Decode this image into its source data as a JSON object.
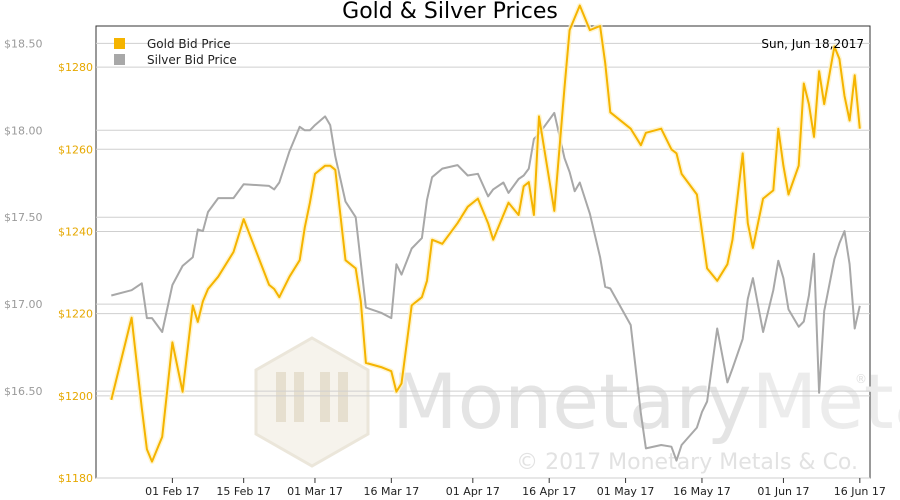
{
  "chart_data": {
    "type": "line",
    "title": "Gold & Silver Prices",
    "date_label": "Sun, Jun 18,2017",
    "x": [
      "2017-01-20",
      "2017-01-24",
      "2017-01-26",
      "2017-01-27",
      "2017-01-28",
      "2017-01-30",
      "2017-02-01",
      "2017-02-03",
      "2017-02-05",
      "2017-02-06",
      "2017-02-07",
      "2017-02-08",
      "2017-02-10",
      "2017-02-13",
      "2017-02-15",
      "2017-02-20",
      "2017-02-21",
      "2017-02-22",
      "2017-02-24",
      "2017-02-26",
      "2017-02-27",
      "2017-02-28",
      "2017-03-01",
      "2017-03-03",
      "2017-03-04",
      "2017-03-05",
      "2017-03-07",
      "2017-03-09",
      "2017-03-10",
      "2017-03-11",
      "2017-03-14",
      "2017-03-16",
      "2017-03-17",
      "2017-03-18",
      "2017-03-20",
      "2017-03-22",
      "2017-03-23",
      "2017-03-24",
      "2017-03-26",
      "2017-03-29",
      "2017-03-31",
      "2017-04-02",
      "2017-04-04",
      "2017-04-05",
      "2017-04-07",
      "2017-04-08",
      "2017-04-10",
      "2017-04-11",
      "2017-04-12",
      "2017-04-13",
      "2017-04-14",
      "2017-04-17",
      "2017-04-19",
      "2017-04-20",
      "2017-04-21",
      "2017-04-22",
      "2017-04-24",
      "2017-04-26",
      "2017-04-27",
      "2017-04-28",
      "2017-05-02",
      "2017-05-04",
      "2017-05-05",
      "2017-05-08",
      "2017-05-10",
      "2017-05-11",
      "2017-05-12",
      "2017-05-15",
      "2017-05-16",
      "2017-05-17",
      "2017-05-19",
      "2017-05-21",
      "2017-05-22",
      "2017-05-24",
      "2017-05-25",
      "2017-05-26",
      "2017-05-28",
      "2017-05-30",
      "2017-05-31",
      "2017-06-01",
      "2017-06-02",
      "2017-06-04",
      "2017-06-05",
      "2017-06-06",
      "2017-06-07",
      "2017-06-08",
      "2017-06-09",
      "2017-06-11",
      "2017-06-12",
      "2017-06-13",
      "2017-06-14",
      "2017-06-15",
      "2017-06-16"
    ],
    "series": [
      {
        "name": "Gold Bid Price",
        "color": "#f5b400",
        "values": [
          1199,
          1219,
          1197,
          1187,
          1184,
          1190,
          1213,
          1201,
          1222,
          1218,
          1223,
          1226,
          1229,
          1235,
          1243,
          1227,
          1226,
          1224,
          1229,
          1233,
          1241,
          1247,
          1254,
          1256,
          1256,
          1255,
          1233,
          1231,
          1223,
          1208,
          1207,
          1206,
          1201,
          1203,
          1222,
          1224,
          1228,
          1238,
          1237,
          1242,
          1246,
          1248,
          1242,
          1238,
          1244,
          1247,
          1244,
          1251,
          1252,
          1244,
          1268,
          1245,
          1275,
          1289,
          1292,
          1295,
          1289,
          1290,
          1281,
          1269,
          1265,
          1261,
          1264,
          1265,
          1260,
          1259,
          1254,
          1249,
          1240,
          1231,
          1228,
          1232,
          1238,
          1259,
          1242,
          1236,
          1248,
          1250,
          1265,
          1256,
          1249,
          1256,
          1276,
          1271,
          1263,
          1279,
          1271,
          1285,
          1282,
          1273,
          1267,
          1278,
          1265
        ]
      },
      {
        "name": "Silver Bid Price",
        "color": "#a8a8a8",
        "values": [
          17.05,
          17.08,
          17.12,
          16.92,
          16.92,
          16.84,
          17.11,
          17.22,
          17.27,
          17.43,
          17.42,
          17.53,
          17.61,
          17.61,
          17.69,
          17.68,
          17.66,
          17.7,
          17.88,
          18.02,
          18.0,
          18.0,
          18.03,
          18.08,
          18.03,
          17.85,
          17.59,
          17.5,
          17.24,
          16.98,
          16.95,
          16.92,
          17.23,
          17.17,
          17.32,
          17.38,
          17.6,
          17.73,
          17.78,
          17.8,
          17.74,
          17.75,
          17.62,
          17.66,
          17.7,
          17.64,
          17.72,
          17.74,
          17.78,
          17.95,
          17.98,
          18.1,
          17.84,
          17.76,
          17.65,
          17.7,
          17.52,
          17.27,
          17.1,
          17.09,
          16.88,
          16.37,
          16.17,
          16.19,
          16.18,
          16.1,
          16.19,
          16.29,
          16.38,
          16.44,
          16.86,
          16.55,
          16.63,
          16.8,
          17.03,
          17.15,
          16.84,
          17.08,
          17.25,
          17.15,
          16.97,
          16.87,
          16.9,
          17.05,
          17.29,
          16.49,
          16.96,
          17.26,
          17.35,
          17.42,
          17.23,
          16.86,
          16.99
        ],
        "axis": "left"
      }
    ],
    "y_left": {
      "ticks": [
        "$16.50",
        "$17.00",
        "$17.50",
        "$18.00",
        "$18.50"
      ],
      "range": [
        16.0,
        18.6
      ]
    },
    "y_right": {
      "ticks": [
        "$1180",
        "$1200",
        "$1220",
        "$1240",
        "$1260",
        "$1280"
      ],
      "range": [
        1180,
        1290
      ]
    },
    "x_ticks": [
      "01 Feb 17",
      "15 Feb 17",
      "01 Mar 17",
      "16 Mar 17",
      "01 Apr 17",
      "16 Apr 17",
      "01 May 17",
      "16 May 17",
      "01 Jun 17",
      "16 Jun 17"
    ],
    "grid": true,
    "legend": "top-left"
  },
  "watermark": {
    "brand": "MonetaryMetals",
    "brand_first": "Monetary",
    "brand_second": "Metals",
    "registered": "®",
    "copyright": "© 2017 Monetary Metals & Co."
  }
}
